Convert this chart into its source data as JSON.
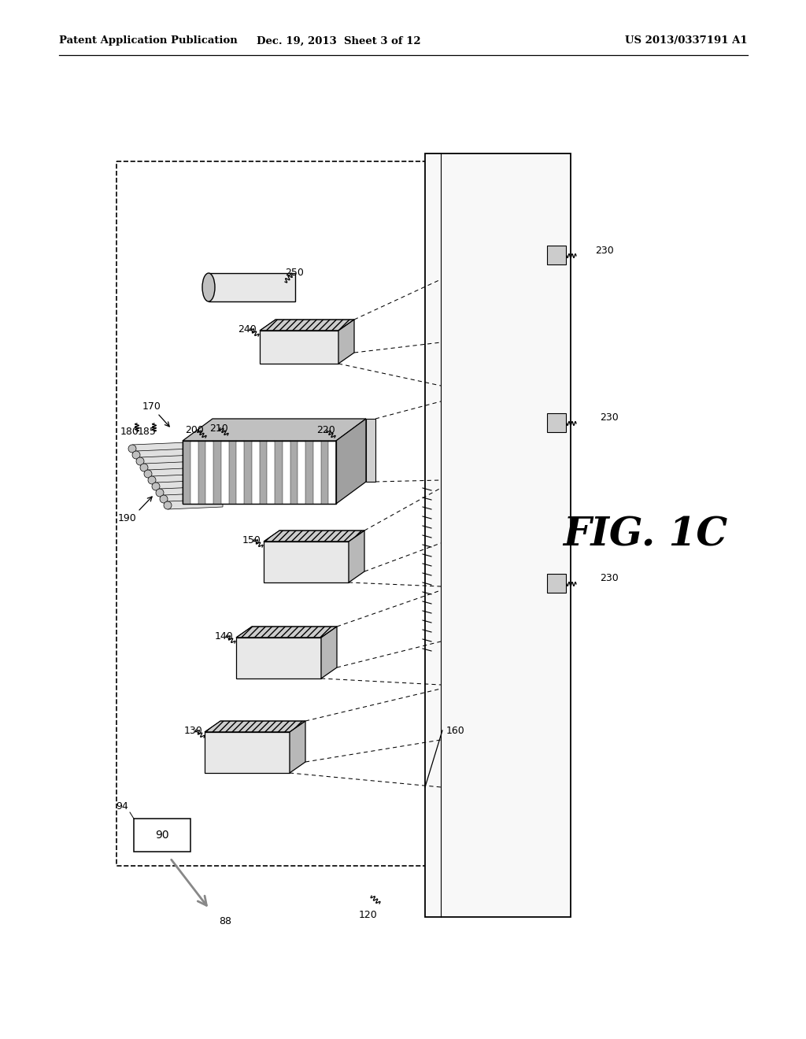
{
  "bg_color": "#ffffff",
  "header_left": "Patent Application Publication",
  "header_mid": "Dec. 19, 2013  Sheet 3 of 12",
  "header_right": "US 2013/0337191 A1",
  "fig_label": "FIG. 1C"
}
